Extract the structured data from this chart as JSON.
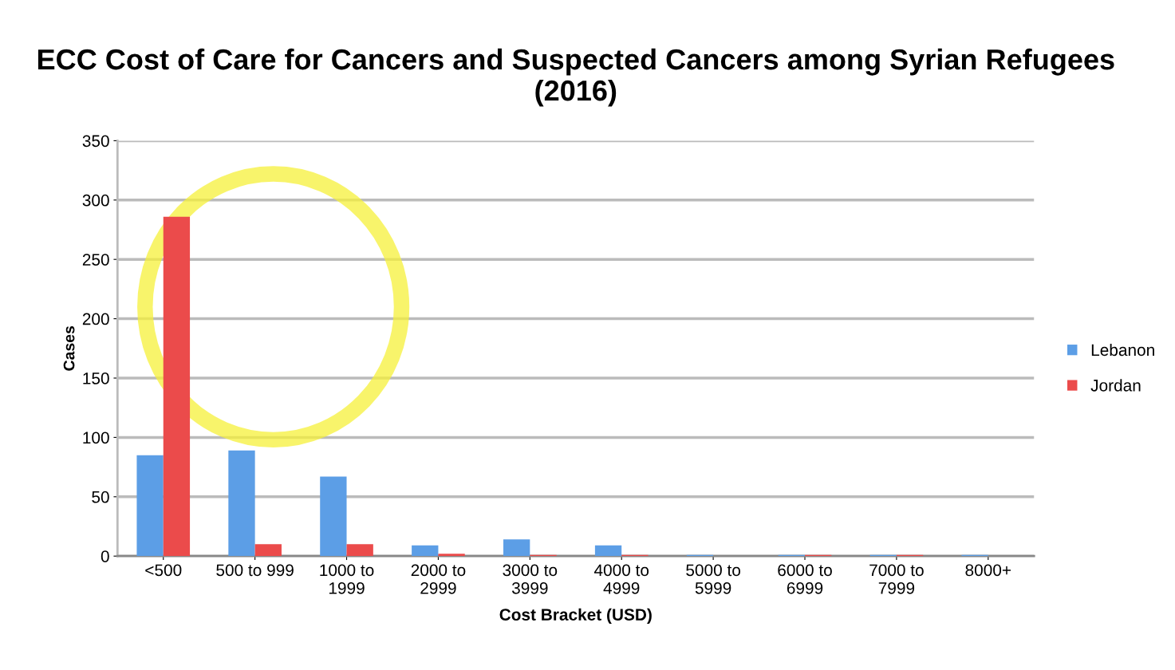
{
  "chart_data": {
    "type": "bar",
    "title": "ECC Cost of Care for Cancers and Suspected Cancers among Syrian Refugees (2016)",
    "xlabel": "Cost Bracket (USD)",
    "ylabel": "Cases",
    "categories": [
      "<500",
      "500 to 999",
      "1000 to\n1999",
      "2000 to\n2999",
      "3000 to\n3999",
      "4000 to\n4999",
      "5000 to\n5999",
      "6000 to\n6999",
      "7000 to\n7999",
      "8000+"
    ],
    "series": [
      {
        "name": "Lebanon",
        "color": "#5c9ee6",
        "values": [
          85,
          89,
          67,
          9,
          14,
          9,
          1,
          1,
          1,
          1
        ]
      },
      {
        "name": "Jordan",
        "color": "#eb4b4b",
        "values": [
          286,
          10,
          10,
          2,
          1,
          1,
          0,
          1,
          1,
          0
        ]
      }
    ],
    "ylim": [
      0,
      350
    ],
    "yticks": [
      0,
      50,
      100,
      150,
      200,
      250,
      300,
      350
    ],
    "grid": "y",
    "legend": "right"
  }
}
